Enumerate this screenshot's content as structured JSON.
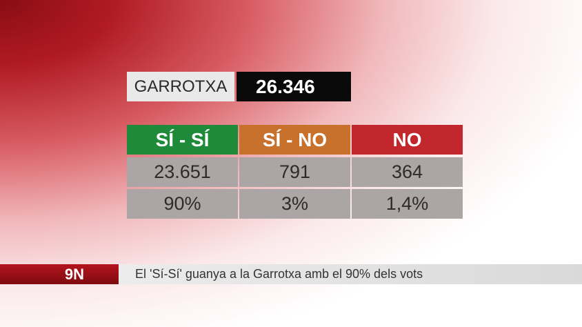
{
  "header": {
    "region": "GARROTXA",
    "total": "26.346"
  },
  "table": {
    "columns": [
      {
        "label": "SÍ - SÍ",
        "color": "#1e8a3a",
        "votes": "23.651",
        "percent": "90%"
      },
      {
        "label": "SÍ - NO",
        "color": "#c8712c",
        "votes": "791",
        "percent": "3%"
      },
      {
        "label": "NO",
        "color": "#c1272d",
        "votes": "364",
        "percent": "1,4%"
      }
    ]
  },
  "ticker": {
    "tag": "9N",
    "headline": "El 'Sí-Sí' guanya a la Garrotxa amb el 90% dels vots"
  }
}
